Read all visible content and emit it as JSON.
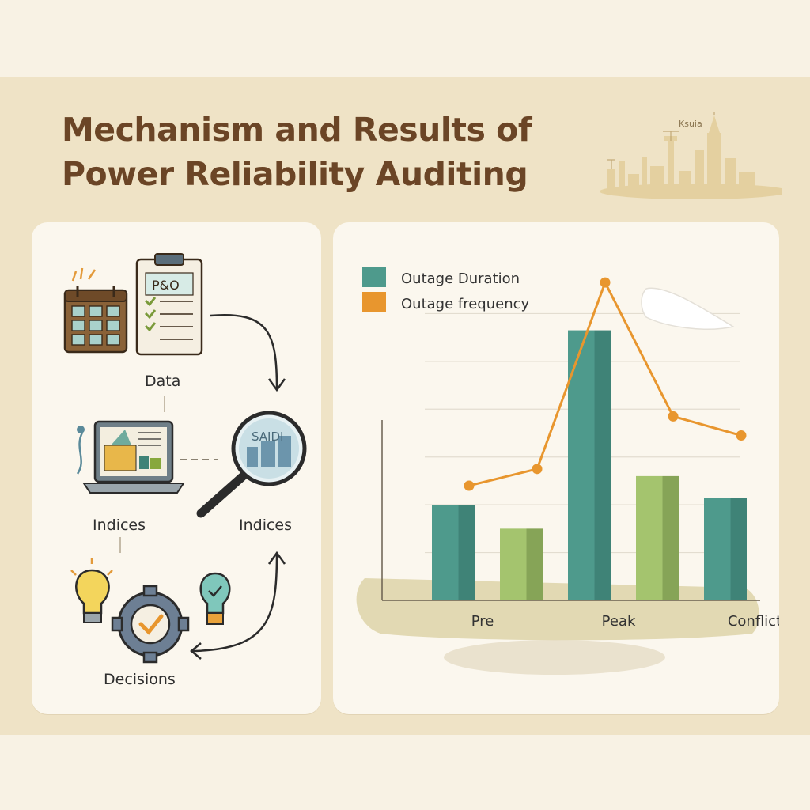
{
  "title_lines": [
    "Mechanism and Results of",
    "Power Reliability Auditing"
  ],
  "skyline_label": "Ksuia",
  "flow": {
    "steps": [
      "Data",
      "Indices",
      "Indices",
      "Decisions"
    ],
    "magnifier_text": "SAIDI",
    "clipboard_text": "P&O"
  },
  "colors": {
    "duration": "#4e9a8c",
    "duration_dark": "#3f8377",
    "green": "#a4c46e",
    "green_dark": "#86a457",
    "frequency": "#e8962e",
    "title": "#6b4526"
  },
  "chart_data": {
    "type": "bar",
    "legend_placement": "top-left",
    "grid": true,
    "categories": [
      "Pre",
      "",
      "Peak",
      "",
      "Conflict"
    ],
    "series": [
      {
        "name": "Outage Duration",
        "kind": "bar",
        "values": [
          4.0,
          3.0,
          11.3,
          5.2,
          4.3
        ]
      },
      {
        "name": "Outage frequency",
        "kind": "line",
        "values": [
          4.8,
          5.5,
          13.3,
          7.7,
          6.9
        ]
      }
    ],
    "ylim": [
      0,
      14
    ]
  }
}
